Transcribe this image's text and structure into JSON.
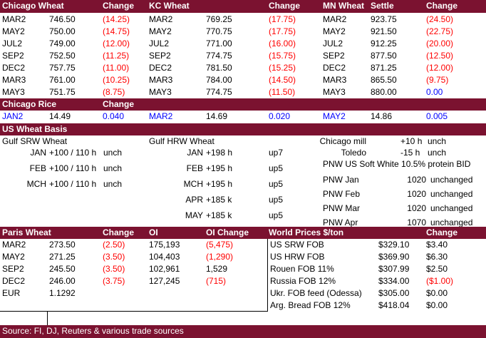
{
  "futures_header": {
    "chicago_wheat": "Chicago Wheat",
    "change1": "Change",
    "kc_wheat": "KC Wheat",
    "change2": "Change",
    "mn_wheat": "MN Wheat",
    "settle": "Settle",
    "change3": "Change"
  },
  "futures_rows": [
    {
      "c_m": "MAR2",
      "c_p": "746.50",
      "c_c": "(14.25)",
      "k_m": "MAR2",
      "k_p": "769.25",
      "k_c": "(17.75)",
      "m_m": "MAR2",
      "m_p": "923.75",
      "m_c": "(24.50)"
    },
    {
      "c_m": "MAY2",
      "c_p": "750.00",
      "c_c": "(14.75)",
      "k_m": "MAY2",
      "k_p": "770.75",
      "k_c": "(17.75)",
      "m_m": "MAY2",
      "m_p": "921.50",
      "m_c": "(22.75)"
    },
    {
      "c_m": "JUL2",
      "c_p": "749.00",
      "c_c": "(12.00)",
      "k_m": "JUL2",
      "k_p": "771.00",
      "k_c": "(16.00)",
      "m_m": "JUL2",
      "m_p": "912.25",
      "m_c": "(20.00)"
    },
    {
      "c_m": "SEP2",
      "c_p": "752.50",
      "c_c": "(11.25)",
      "k_m": "SEP2",
      "k_p": "774.75",
      "k_c": "(15.75)",
      "m_m": "SEP2",
      "m_p": "877.50",
      "m_c": "(12.50)"
    },
    {
      "c_m": "DEC2",
      "c_p": "757.75",
      "c_c": "(11.00)",
      "k_m": "DEC2",
      "k_p": "781.50",
      "k_c": "(15.25)",
      "m_m": "DEC2",
      "m_p": "871.25",
      "m_c": "(12.00)"
    },
    {
      "c_m": "MAR3",
      "c_p": "761.00",
      "c_c": "(10.25)",
      "k_m": "MAR3",
      "k_p": "784.00",
      "k_c": "(14.50)",
      "m_m": "MAR3",
      "m_p": "865.50",
      "m_c": "(9.75)"
    },
    {
      "c_m": "MAY3",
      "c_p": "751.75",
      "c_c": "(8.75)",
      "k_m": "MAY3",
      "k_p": "774.75",
      "k_c": "(11.50)",
      "m_m": "MAY3",
      "m_p": "880.00",
      "m_c": "0.00"
    }
  ],
  "rice": {
    "title": "Chicago Rice",
    "change": "Change",
    "items": [
      {
        "month": "JAN2",
        "price": "14.49",
        "change": "0.040"
      },
      {
        "month": "MAR2",
        "price": "14.69",
        "change": "0.020"
      },
      {
        "month": "MAY2",
        "price": "14.86",
        "change": "0.005"
      }
    ]
  },
  "basis": {
    "title": "US Wheat Basis",
    "gulf_srw": "Gulf SRW Wheat",
    "gulf_hrw": "Gulf HRW Wheat",
    "srw_rows": [
      {
        "month": "JAN",
        "bid": "+100 / 110 h",
        "chg": "unch"
      },
      {
        "month": "FEB",
        "bid": "+100 / 110 h",
        "chg": "unch"
      },
      {
        "month": "MCH",
        "bid": "+100 / 110 h",
        "chg": "unch"
      }
    ],
    "hrw_rows": [
      {
        "month": "JAN",
        "bid": "+198 h",
        "chg": "up7"
      },
      {
        "month": "FEB",
        "bid": "+195 h",
        "chg": "up5"
      },
      {
        "month": "MCH",
        "bid": "+195 h",
        "chg": "up5"
      },
      {
        "month": "APR",
        "bid": "+185 k",
        "chg": "up5"
      },
      {
        "month": "MAY",
        "bid": "+185 k",
        "chg": "up5"
      }
    ],
    "chicago_mill": {
      "label": "Chicago mill",
      "bid": "+10 h",
      "chg": "unch"
    },
    "toledo": {
      "label": "Toledo",
      "bid": "-15 h",
      "chg": "unch"
    },
    "pnw_title": "PNW US Soft White 10.5% protein BID",
    "pnw_rows": [
      {
        "label": "PNW Jan",
        "price": "1020",
        "chg": "unchanged"
      },
      {
        "label": "PNW Feb",
        "price": "1020",
        "chg": "unchanged"
      },
      {
        "label": "PNW Mar",
        "price": "1020",
        "chg": "unchanged"
      },
      {
        "label": "PNW Apr",
        "price": "1070",
        "chg": "unchanged"
      }
    ]
  },
  "paris": {
    "title": "Paris Wheat",
    "change": "Change",
    "oi": "OI",
    "oi_change": "OI Change",
    "rows": [
      {
        "month": "MAR2",
        "price": "273.50",
        "chg": "(2.50)",
        "oi": "175,193",
        "oic": "(5,475)"
      },
      {
        "month": "MAY2",
        "price": "271.25",
        "chg": "(3.50)",
        "oi": "104,403",
        "oic": "(1,290)"
      },
      {
        "month": "SEP2",
        "price": "245.50",
        "chg": "(3.50)",
        "oi": "102,961",
        "oic": "1,529"
      },
      {
        "month": "DEC2",
        "price": "246.00",
        "chg": "(3.75)",
        "oi": "127,245",
        "oic": "(715)"
      }
    ],
    "eur_label": "EUR",
    "eur_value": "1.1292"
  },
  "world": {
    "title": "World Prices $/ton",
    "change": "Change",
    "rows": [
      {
        "label": "US SRW FOB",
        "price": "$329.10",
        "chg": "$3.40"
      },
      {
        "label": "US HRW FOB",
        "price": "$369.90",
        "chg": "$6.30"
      },
      {
        "label": "Rouen FOB 11%",
        "price": "$307.99",
        "chg": "$2.50"
      },
      {
        "label": "Russia FOB 12%",
        "price": "$334.00",
        "chg": "($1.00)"
      },
      {
        "label": "Ukr. FOB feed (Odessa)",
        "price": "$305.00",
        "chg": "$0.00"
      },
      {
        "label": "Arg. Bread FOB 12%",
        "price": "$418.04",
        "chg": "$0.00"
      }
    ]
  },
  "source": "Source: FI, DJ, Reuters & various trade sources",
  "colors": {
    "header_bg": "#7b1230",
    "negative": "#ff0000",
    "rice": "#0000ff",
    "mn_zero": "#0000ff"
  }
}
